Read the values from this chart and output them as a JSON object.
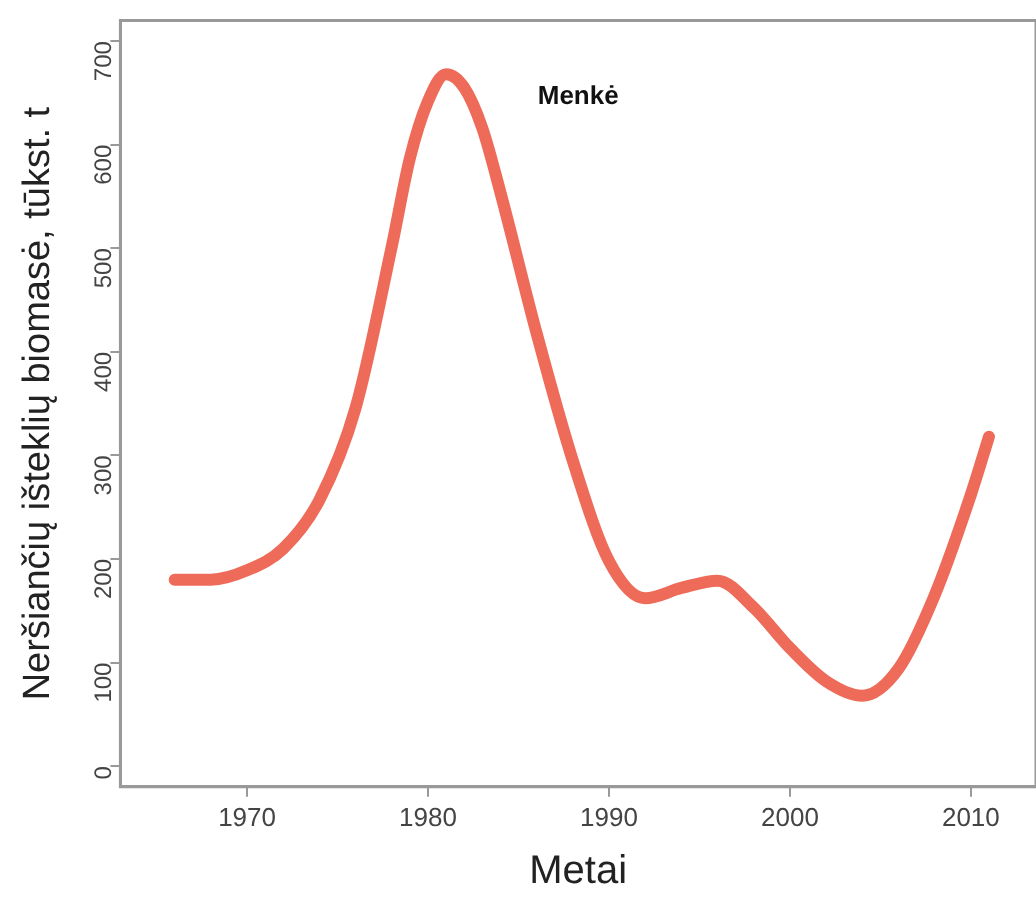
{
  "chart_data": {
    "type": "line",
    "xlabel": "Metai",
    "ylabel": "Neršiančių išteklių biomasė, tūkst. t",
    "xlim": [
      1963,
      2013.6
    ],
    "xticks": [
      1970,
      1980,
      1990,
      2000,
      2010
    ],
    "ylim": [
      -20,
      720
    ],
    "yticks": [
      0,
      100,
      200,
      300,
      400,
      500,
      600,
      700
    ],
    "grid": false,
    "legend": false,
    "line_style": "solid",
    "marker": "none",
    "x": [
      1966,
      1968,
      1970,
      1972,
      1974,
      1976,
      1978,
      1979,
      1980,
      1981,
      1982,
      1983,
      1984,
      1986,
      1988,
      1990,
      1992,
      1994,
      1996,
      1998,
      2000,
      2002,
      2004,
      2006,
      2008,
      2010,
      2011
    ],
    "series": [
      {
        "name": "Menkė",
        "color": "#ee6b5a",
        "values": [
          180,
          180,
          189,
          210,
          257,
          346,
          502,
          587,
          642,
          668,
          655,
          616,
          554,
          418,
          295,
          198,
          162,
          172,
          179,
          153,
          114,
          82,
          68,
          94,
          165,
          262,
          318
        ]
      }
    ]
  }
}
